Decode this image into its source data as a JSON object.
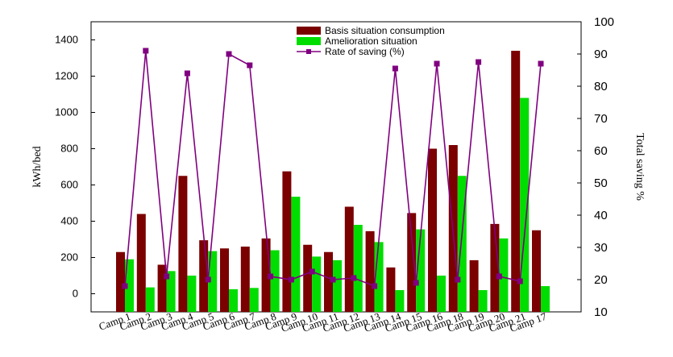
{
  "chart_data": {
    "type": "bar",
    "categories": [
      "Camp 1",
      "Camp 2",
      "Camp 3",
      "Camp 4",
      "Camp 5",
      "Camp 6",
      "Camp 7",
      "Camp 8",
      "Camp 9",
      "Camp 10",
      "Camp 11",
      "Camp 12",
      "Camp 13",
      "Camp 14",
      "Camp 15",
      "Camp 16",
      "Camp 18",
      "Camp 19",
      "Camp 20",
      "Camp 21",
      "Camp 17"
    ],
    "series": [
      {
        "name": "Basis situation consumption",
        "type": "bar",
        "axis": "left",
        "color": "#7b0000",
        "values": [
          230,
          440,
          160,
          650,
          295,
          250,
          260,
          305,
          675,
          270,
          230,
          480,
          345,
          145,
          445,
          800,
          820,
          185,
          385,
          1340,
          350
        ]
      },
      {
        "name": "Amelioration situation",
        "type": "bar",
        "axis": "left",
        "color": "#00dd00",
        "values": [
          190,
          35,
          125,
          100,
          235,
          25,
          32,
          240,
          535,
          205,
          185,
          380,
          285,
          20,
          355,
          100,
          650,
          20,
          305,
          1080,
          42
        ]
      },
      {
        "name": "Rate of saving (%)",
        "type": "line",
        "axis": "right",
        "color": "#800080",
        "marker": "square",
        "values": [
          18,
          91,
          21,
          84,
          20,
          90,
          86.5,
          21,
          20,
          22.5,
          20,
          20.5,
          18,
          85.5,
          19,
          87,
          20,
          87.5,
          21,
          19.5,
          87
        ]
      }
    ],
    "ylabel": "kWh/bed",
    "y2label": "Total saving %",
    "ylim": [
      -100,
      1500
    ],
    "y2lim": [
      10,
      100
    ],
    "yticks": [
      0,
      200,
      400,
      600,
      800,
      1000,
      1200,
      1400
    ],
    "yticks_display": [
      "0",
      "200",
      "400",
      "600",
      "800",
      "1000",
      "1200",
      "1400"
    ],
    "y2ticks": [
      10,
      20,
      30,
      40,
      50,
      60,
      70,
      80,
      90,
      100
    ],
    "legend": "top-center",
    "grid": false
  }
}
